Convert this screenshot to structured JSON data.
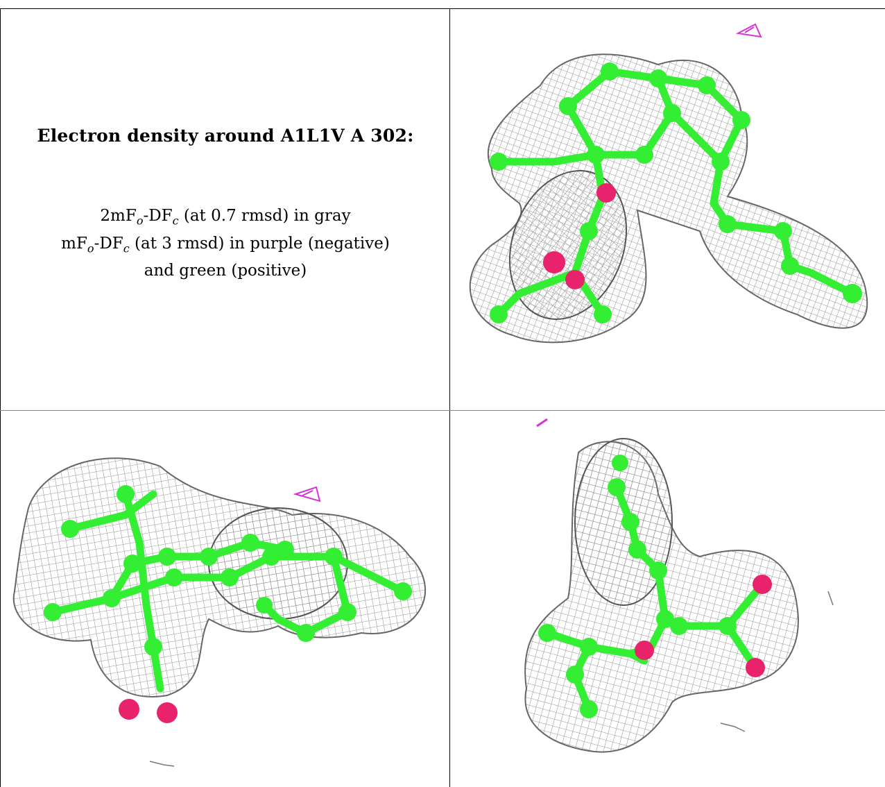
{
  "figure": {
    "title": "Electron density around A1L1V A 302:",
    "legend": {
      "line1": {
        "pre": "2mF",
        "sub1": "o",
        "mid": "-DF",
        "sub2": "c",
        "post": " (at 0.7 rmsd) in gray"
      },
      "line2": {
        "pre": "mF",
        "sub1": "o",
        "mid": "-DF",
        "sub2": "c",
        "post": " (at 3 rmsd) in purple (negative)"
      },
      "line3": "and green (positive)"
    },
    "colors": {
      "mesh": "#9a9a9a",
      "carbon": "#33ee33",
      "oxygen": "#e8236c",
      "negative_density": "#d633d6",
      "positive_density": "#22cc22"
    },
    "panels": [
      "view-1",
      "view-2",
      "view-3"
    ]
  }
}
